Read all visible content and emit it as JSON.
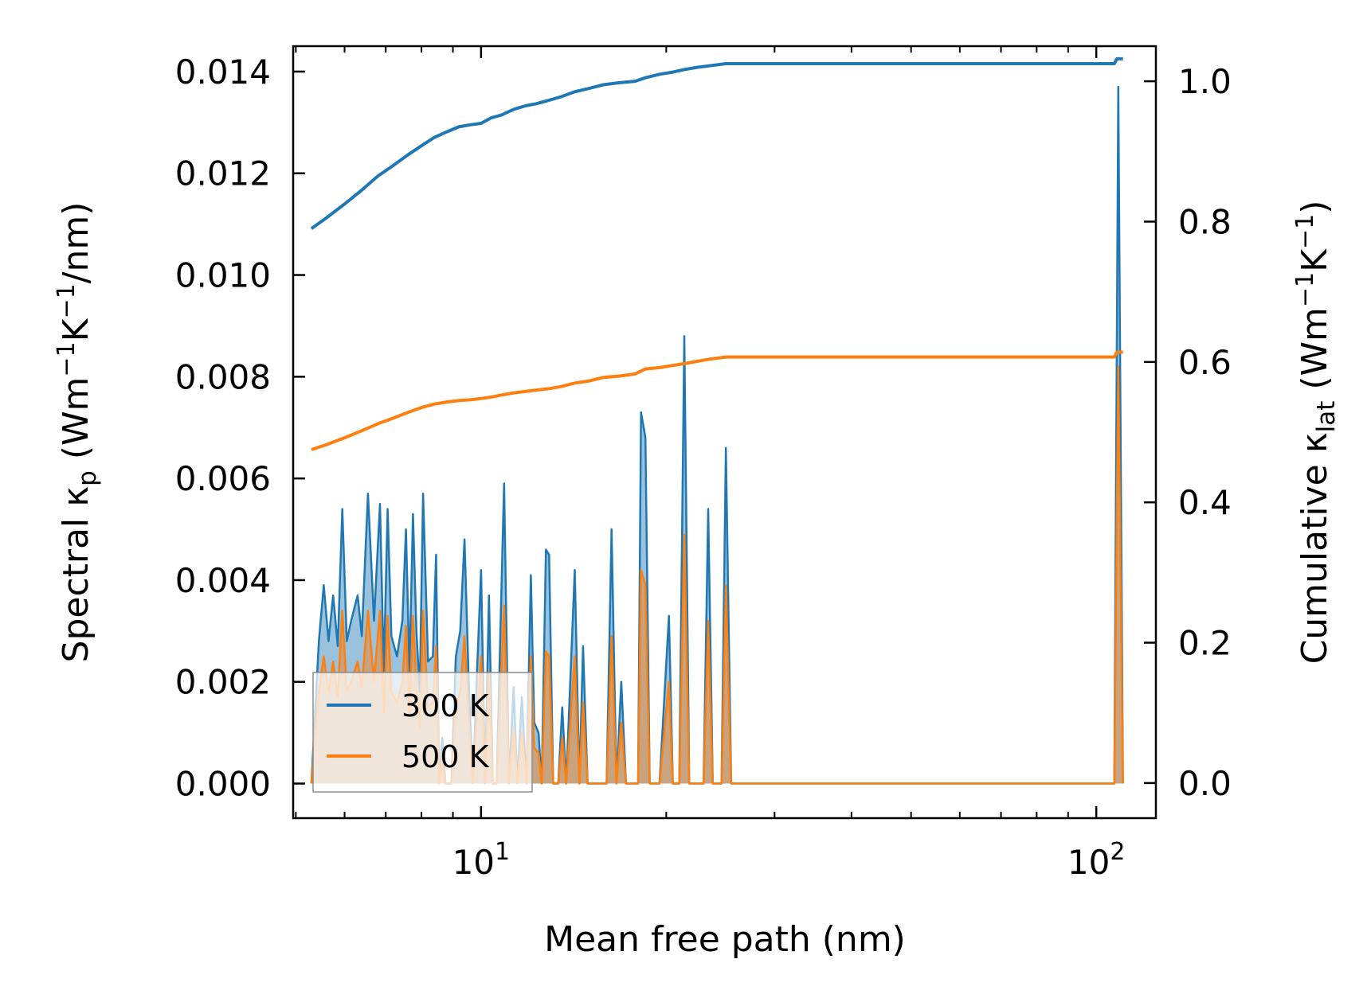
{
  "chart_data": {
    "type": "line",
    "xscale": "log",
    "xlim": [
      4.95,
      125
    ],
    "xlabel": "Mean free path (nm)",
    "x_major_ticks": [
      {
        "value": 10,
        "base": "10",
        "exp": "1"
      },
      {
        "value": 100,
        "base": "10",
        "exp": "2"
      }
    ],
    "y_left": {
      "label_parts": {
        "a": "Spectral κ",
        "sub1": "p",
        "b": " (Wm",
        "sup1": "−1",
        "c": "K",
        "sup2": "−1",
        "d": "/nm)"
      },
      "ylim": [
        -0.00068,
        0.0145
      ],
      "ticks": [
        0.0,
        0.002,
        0.004,
        0.006,
        0.008,
        0.01,
        0.012,
        0.014
      ],
      "tick_labels": [
        "0.000",
        "0.002",
        "0.004",
        "0.006",
        "0.008",
        "0.010",
        "0.012",
        "0.014"
      ]
    },
    "y_right": {
      "label_parts": {
        "a": "Cumulative κ",
        "sub1": "lat",
        "b": " (Wm",
        "sup1": "−1",
        "c": "K",
        "sup2": "−1",
        "d": ")"
      },
      "ylim": [
        -0.05,
        1.05
      ],
      "ticks": [
        0.0,
        0.2,
        0.4,
        0.6,
        0.8,
        1.0
      ],
      "tick_labels": [
        "0.0",
        "0.2",
        "0.4",
        "0.6",
        "0.8",
        "1.0"
      ]
    },
    "legend": {
      "position": "lower-left",
      "entries": [
        "300 K",
        "500 K"
      ]
    },
    "colors": {
      "300K": "#1f77b4",
      "500K": "#ff7f0e"
    },
    "spectral_series": [
      {
        "name": "300 K",
        "color": "#1f77b4",
        "points": [
          [
            5.3,
            0.0
          ],
          [
            5.45,
            0.0028
          ],
          [
            5.55,
            0.0039
          ],
          [
            5.65,
            0.0028
          ],
          [
            5.75,
            0.0037
          ],
          [
            5.85,
            0.0027
          ],
          [
            5.95,
            0.0054
          ],
          [
            6.05,
            0.0028
          ],
          [
            6.15,
            0.0032
          ],
          [
            6.3,
            0.0037
          ],
          [
            6.4,
            0.0029
          ],
          [
            6.55,
            0.0057
          ],
          [
            6.7,
            0.0032
          ],
          [
            6.85,
            0.0055
          ],
          [
            6.95,
            0.0022
          ],
          [
            7.05,
            0.0054
          ],
          [
            7.15,
            0.0029
          ],
          [
            7.3,
            0.0025
          ],
          [
            7.45,
            0.0032
          ],
          [
            7.55,
            0.005
          ],
          [
            7.65,
            0.0022
          ],
          [
            7.75,
            0.0053
          ],
          [
            7.85,
            0.003
          ],
          [
            7.95,
            0.0018
          ],
          [
            8.05,
            0.0057
          ],
          [
            8.2,
            0.0024
          ],
          [
            8.35,
            0.0025
          ],
          [
            8.45,
            0.0045
          ],
          [
            8.55,
            0.0
          ],
          [
            8.65,
            0.0009
          ],
          [
            8.75,
            0.0
          ],
          [
            8.95,
            0.0
          ],
          [
            9.1,
            0.0025
          ],
          [
            9.25,
            0.003
          ],
          [
            9.4,
            0.0048
          ],
          [
            9.55,
            0.002
          ],
          [
            9.7,
            0.0
          ],
          [
            9.85,
            0.0022
          ],
          [
            10.0,
            0.0042
          ],
          [
            10.15,
            0.0
          ],
          [
            10.3,
            0.0037
          ],
          [
            10.45,
            0.0
          ],
          [
            10.6,
            0.0
          ],
          [
            10.9,
            0.0059
          ],
          [
            11.1,
            0.0
          ],
          [
            11.3,
            0.0019
          ],
          [
            11.45,
            0.0
          ],
          [
            11.65,
            0.0017
          ],
          [
            11.85,
            0.0
          ],
          [
            12.05,
            0.0041
          ],
          [
            12.2,
            0.0012
          ],
          [
            12.4,
            0.001
          ],
          [
            12.55,
            0.0
          ],
          [
            12.75,
            0.0046
          ],
          [
            12.9,
            0.0045
          ],
          [
            13.1,
            0.0
          ],
          [
            13.35,
            0.0
          ],
          [
            13.55,
            0.0015
          ],
          [
            13.75,
            0.0
          ],
          [
            14.2,
            0.0042
          ],
          [
            14.45,
            0.0
          ],
          [
            14.65,
            0.0027
          ],
          [
            14.9,
            0.0
          ],
          [
            15.3,
            0.0
          ],
          [
            16.0,
            0.0
          ],
          [
            16.3,
            0.005
          ],
          [
            16.6,
            0.0
          ],
          [
            16.9,
            0.002
          ],
          [
            17.2,
            0.0
          ],
          [
            18.0,
            0.0
          ],
          [
            18.2,
            0.0073
          ],
          [
            18.5,
            0.0068
          ],
          [
            18.8,
            0.0
          ],
          [
            19.5,
            0.0
          ],
          [
            20.2,
            0.0033
          ],
          [
            20.5,
            0.0
          ],
          [
            21.0,
            0.0
          ],
          [
            21.4,
            0.0088
          ],
          [
            21.8,
            0.0
          ],
          [
            23.0,
            0.0
          ],
          [
            23.4,
            0.0054
          ],
          [
            23.8,
            0.0
          ],
          [
            24.6,
            0.0
          ],
          [
            25.0,
            0.0066
          ],
          [
            25.5,
            0.0
          ],
          [
            107.0,
            0.0
          ],
          [
            108.6,
            0.0137
          ],
          [
            110.5,
            0.0
          ]
        ]
      },
      {
        "name": "500 K",
        "color": "#ff7f0e",
        "points": [
          [
            5.3,
            0.0
          ],
          [
            5.45,
            0.0018
          ],
          [
            5.55,
            0.0025
          ],
          [
            5.65,
            0.0018
          ],
          [
            5.75,
            0.0024
          ],
          [
            5.85,
            0.0017
          ],
          [
            5.95,
            0.0034
          ],
          [
            6.05,
            0.0018
          ],
          [
            6.15,
            0.002
          ],
          [
            6.3,
            0.0024
          ],
          [
            6.4,
            0.0019
          ],
          [
            6.55,
            0.0034
          ],
          [
            6.7,
            0.002
          ],
          [
            6.85,
            0.0034
          ],
          [
            6.95,
            0.0014
          ],
          [
            7.05,
            0.0033
          ],
          [
            7.15,
            0.0018
          ],
          [
            7.3,
            0.0016
          ],
          [
            7.45,
            0.002
          ],
          [
            7.55,
            0.0031
          ],
          [
            7.65,
            0.0014
          ],
          [
            7.75,
            0.0033
          ],
          [
            7.85,
            0.0019
          ],
          [
            7.95,
            0.0011
          ],
          [
            8.05,
            0.0034
          ],
          [
            8.2,
            0.0015
          ],
          [
            8.35,
            0.0016
          ],
          [
            8.45,
            0.0027
          ],
          [
            8.55,
            0.0
          ],
          [
            8.65,
            0.0005
          ],
          [
            8.75,
            0.0
          ],
          [
            8.95,
            0.0
          ],
          [
            9.1,
            0.0015
          ],
          [
            9.25,
            0.0018
          ],
          [
            9.4,
            0.0029
          ],
          [
            9.55,
            0.0012
          ],
          [
            9.7,
            0.0
          ],
          [
            9.85,
            0.0013
          ],
          [
            10.0,
            0.0025
          ],
          [
            10.15,
            0.0
          ],
          [
            10.3,
            0.0022
          ],
          [
            10.45,
            0.0
          ],
          [
            10.6,
            0.0
          ],
          [
            10.9,
            0.0035
          ],
          [
            11.1,
            0.0
          ],
          [
            11.3,
            0.0011
          ],
          [
            11.45,
            0.0
          ],
          [
            11.65,
            0.001
          ],
          [
            11.85,
            0.0
          ],
          [
            12.05,
            0.0025
          ],
          [
            12.2,
            0.0007
          ],
          [
            12.4,
            0.0006
          ],
          [
            12.55,
            0.0
          ],
          [
            12.75,
            0.0026
          ],
          [
            12.9,
            0.0025
          ],
          [
            13.1,
            0.0
          ],
          [
            13.35,
            0.0
          ],
          [
            13.55,
            0.0009
          ],
          [
            13.75,
            0.0
          ],
          [
            14.2,
            0.0025
          ],
          [
            14.45,
            0.0
          ],
          [
            14.65,
            0.0016
          ],
          [
            14.9,
            0.0
          ],
          [
            15.3,
            0.0
          ],
          [
            16.0,
            0.0
          ],
          [
            16.3,
            0.0029
          ],
          [
            16.6,
            0.0
          ],
          [
            16.9,
            0.0012
          ],
          [
            17.2,
            0.0
          ],
          [
            18.0,
            0.0
          ],
          [
            18.2,
            0.0042
          ],
          [
            18.5,
            0.0039
          ],
          [
            18.8,
            0.0
          ],
          [
            19.5,
            0.0
          ],
          [
            20.2,
            0.002
          ],
          [
            20.5,
            0.0
          ],
          [
            21.0,
            0.0
          ],
          [
            21.4,
            0.0049
          ],
          [
            21.8,
            0.0
          ],
          [
            23.0,
            0.0
          ],
          [
            23.4,
            0.0032
          ],
          [
            23.8,
            0.0
          ],
          [
            24.6,
            0.0
          ],
          [
            25.0,
            0.0039
          ],
          [
            25.5,
            0.0
          ],
          [
            107.0,
            0.0
          ],
          [
            108.6,
            0.0082
          ],
          [
            110.5,
            0.0
          ]
        ]
      }
    ],
    "cumulative_series": [
      {
        "name": "300 K",
        "color": "#1f77b4",
        "points": [
          [
            5.3,
            0.79
          ],
          [
            5.6,
            0.805
          ],
          [
            6.0,
            0.825
          ],
          [
            6.4,
            0.845
          ],
          [
            6.8,
            0.865
          ],
          [
            7.2,
            0.88
          ],
          [
            7.6,
            0.895
          ],
          [
            8.0,
            0.908
          ],
          [
            8.4,
            0.92
          ],
          [
            8.8,
            0.928
          ],
          [
            9.2,
            0.935
          ],
          [
            9.6,
            0.938
          ],
          [
            10.0,
            0.94
          ],
          [
            10.4,
            0.948
          ],
          [
            10.8,
            0.952
          ],
          [
            11.3,
            0.96
          ],
          [
            11.8,
            0.965
          ],
          [
            12.3,
            0.968
          ],
          [
            12.9,
            0.973
          ],
          [
            13.5,
            0.978
          ],
          [
            14.2,
            0.985
          ],
          [
            15.0,
            0.99
          ],
          [
            15.8,
            0.995
          ],
          [
            16.8,
            0.998
          ],
          [
            17.8,
            1.0
          ],
          [
            18.5,
            1.005
          ],
          [
            19.5,
            1.01
          ],
          [
            20.5,
            1.013
          ],
          [
            21.5,
            1.017
          ],
          [
            22.5,
            1.02
          ],
          [
            23.5,
            1.022
          ],
          [
            25.0,
            1.025
          ],
          [
            40.0,
            1.025
          ],
          [
            107.0,
            1.025
          ],
          [
            108.0,
            1.032
          ],
          [
            110.5,
            1.032
          ]
        ]
      },
      {
        "name": "500 K",
        "color": "#ff7f0e",
        "points": [
          [
            5.3,
            0.475
          ],
          [
            5.6,
            0.482
          ],
          [
            6.0,
            0.492
          ],
          [
            6.4,
            0.502
          ],
          [
            6.8,
            0.512
          ],
          [
            7.2,
            0.52
          ],
          [
            7.6,
            0.528
          ],
          [
            8.0,
            0.535
          ],
          [
            8.4,
            0.54
          ],
          [
            8.8,
            0.543
          ],
          [
            9.2,
            0.545
          ],
          [
            9.6,
            0.546
          ],
          [
            10.0,
            0.548
          ],
          [
            10.4,
            0.55
          ],
          [
            10.8,
            0.553
          ],
          [
            11.3,
            0.556
          ],
          [
            11.8,
            0.558
          ],
          [
            12.3,
            0.56
          ],
          [
            12.9,
            0.562
          ],
          [
            13.5,
            0.565
          ],
          [
            14.2,
            0.57
          ],
          [
            15.0,
            0.573
          ],
          [
            15.8,
            0.578
          ],
          [
            16.8,
            0.58
          ],
          [
            17.8,
            0.583
          ],
          [
            18.5,
            0.59
          ],
          [
            19.5,
            0.592
          ],
          [
            20.5,
            0.595
          ],
          [
            21.5,
            0.598
          ],
          [
            22.5,
            0.601
          ],
          [
            23.5,
            0.604
          ],
          [
            25.0,
            0.607
          ],
          [
            40.0,
            0.607
          ],
          [
            107.0,
            0.607
          ],
          [
            108.0,
            0.614
          ],
          [
            110.5,
            0.614
          ]
        ]
      }
    ]
  }
}
